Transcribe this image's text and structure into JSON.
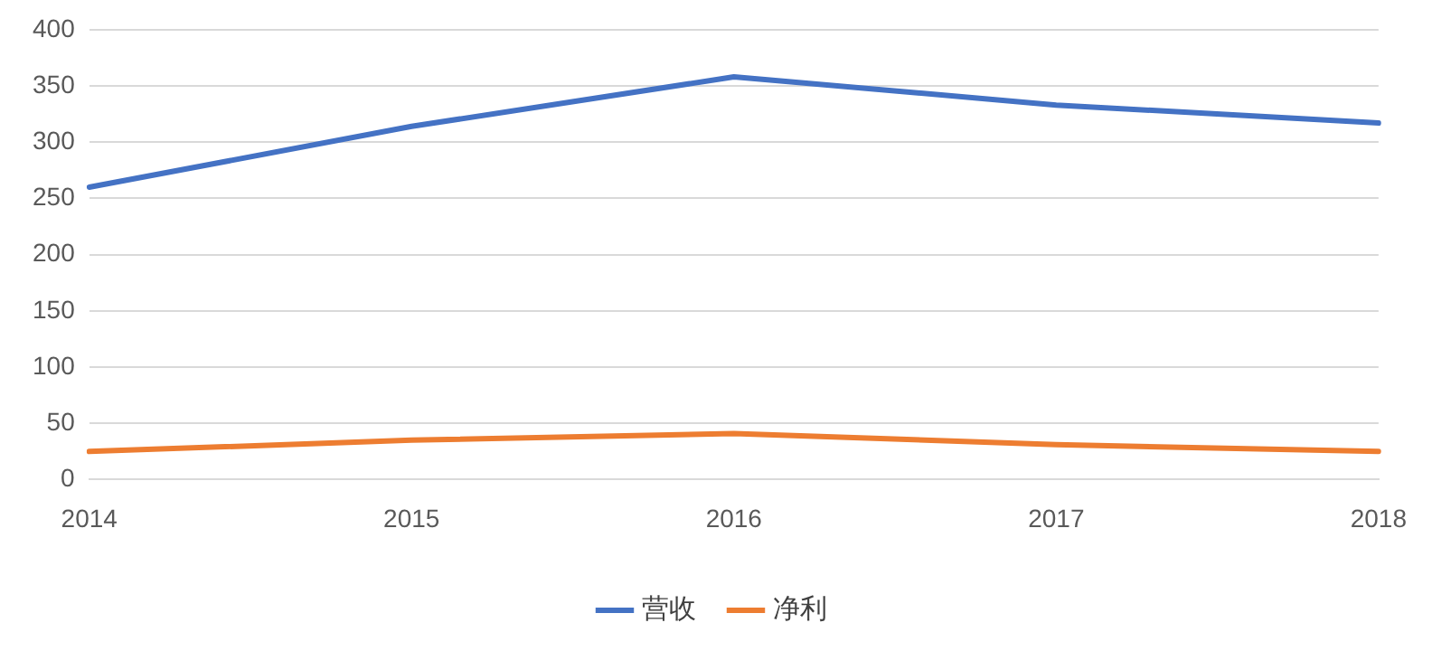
{
  "chart_data": {
    "type": "line",
    "categories": [
      "2014",
      "2015",
      "2016",
      "2017",
      "2018"
    ],
    "series": [
      {
        "name": "营收",
        "color": "#4472c4",
        "values": [
          260,
          314,
          358,
          333,
          317
        ]
      },
      {
        "name": "净利",
        "color": "#ed7d31",
        "values": [
          25,
          35,
          41,
          31,
          25
        ]
      }
    ],
    "ylim": [
      0,
      400
    ],
    "yticks": [
      0,
      50,
      100,
      150,
      200,
      250,
      300,
      350,
      400
    ],
    "grid": "y",
    "legend": "bottom",
    "marker": "none"
  }
}
